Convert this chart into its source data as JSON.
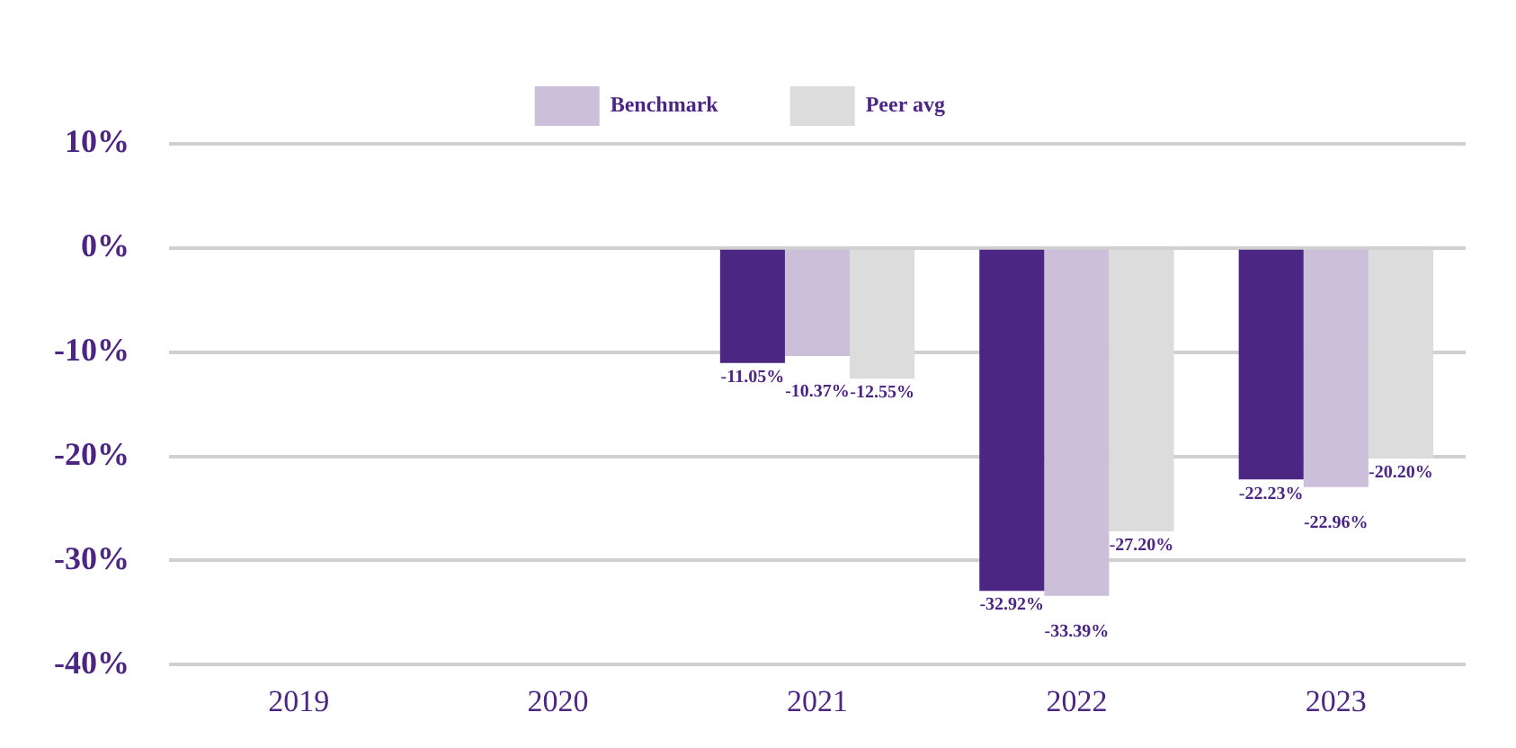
{
  "chart_data": {
    "type": "bar",
    "categories": [
      "2019",
      "2020",
      "2021",
      "2022",
      "2023"
    ],
    "series": [
      {
        "color": "#4b2683",
        "values": [
          null,
          null,
          -11.05,
          -32.92,
          -22.23
        ],
        "value_labels": [
          null,
          null,
          "-11.05%",
          "-32.92%",
          "-22.23%"
        ]
      },
      {
        "name": "Benchmark",
        "color": "#cbbfda",
        "values": [
          null,
          null,
          -10.37,
          -33.39,
          -22.96
        ],
        "value_labels": [
          null,
          null,
          "-10.37%",
          "-33.39%",
          "-22.96%"
        ]
      },
      {
        "name": "Peer avg",
        "color": "#dcdcdc",
        "values": [
          null,
          null,
          -12.55,
          -27.2,
          -20.2
        ],
        "value_labels": [
          null,
          null,
          "-12.55%",
          "-27.20%",
          "-20.20%"
        ]
      }
    ],
    "ylim": [
      -40,
      10
    ],
    "yticks": [
      {
        "value": -40,
        "label": "-40%"
      },
      {
        "value": -30,
        "label": "-30%"
      },
      {
        "value": -20,
        "label": "-20%"
      },
      {
        "value": -10,
        "label": "-10%"
      },
      {
        "value": 0,
        "label": "0%"
      },
      {
        "value": 10,
        "label": "10%"
      }
    ],
    "grid": "y",
    "legend": "top"
  }
}
